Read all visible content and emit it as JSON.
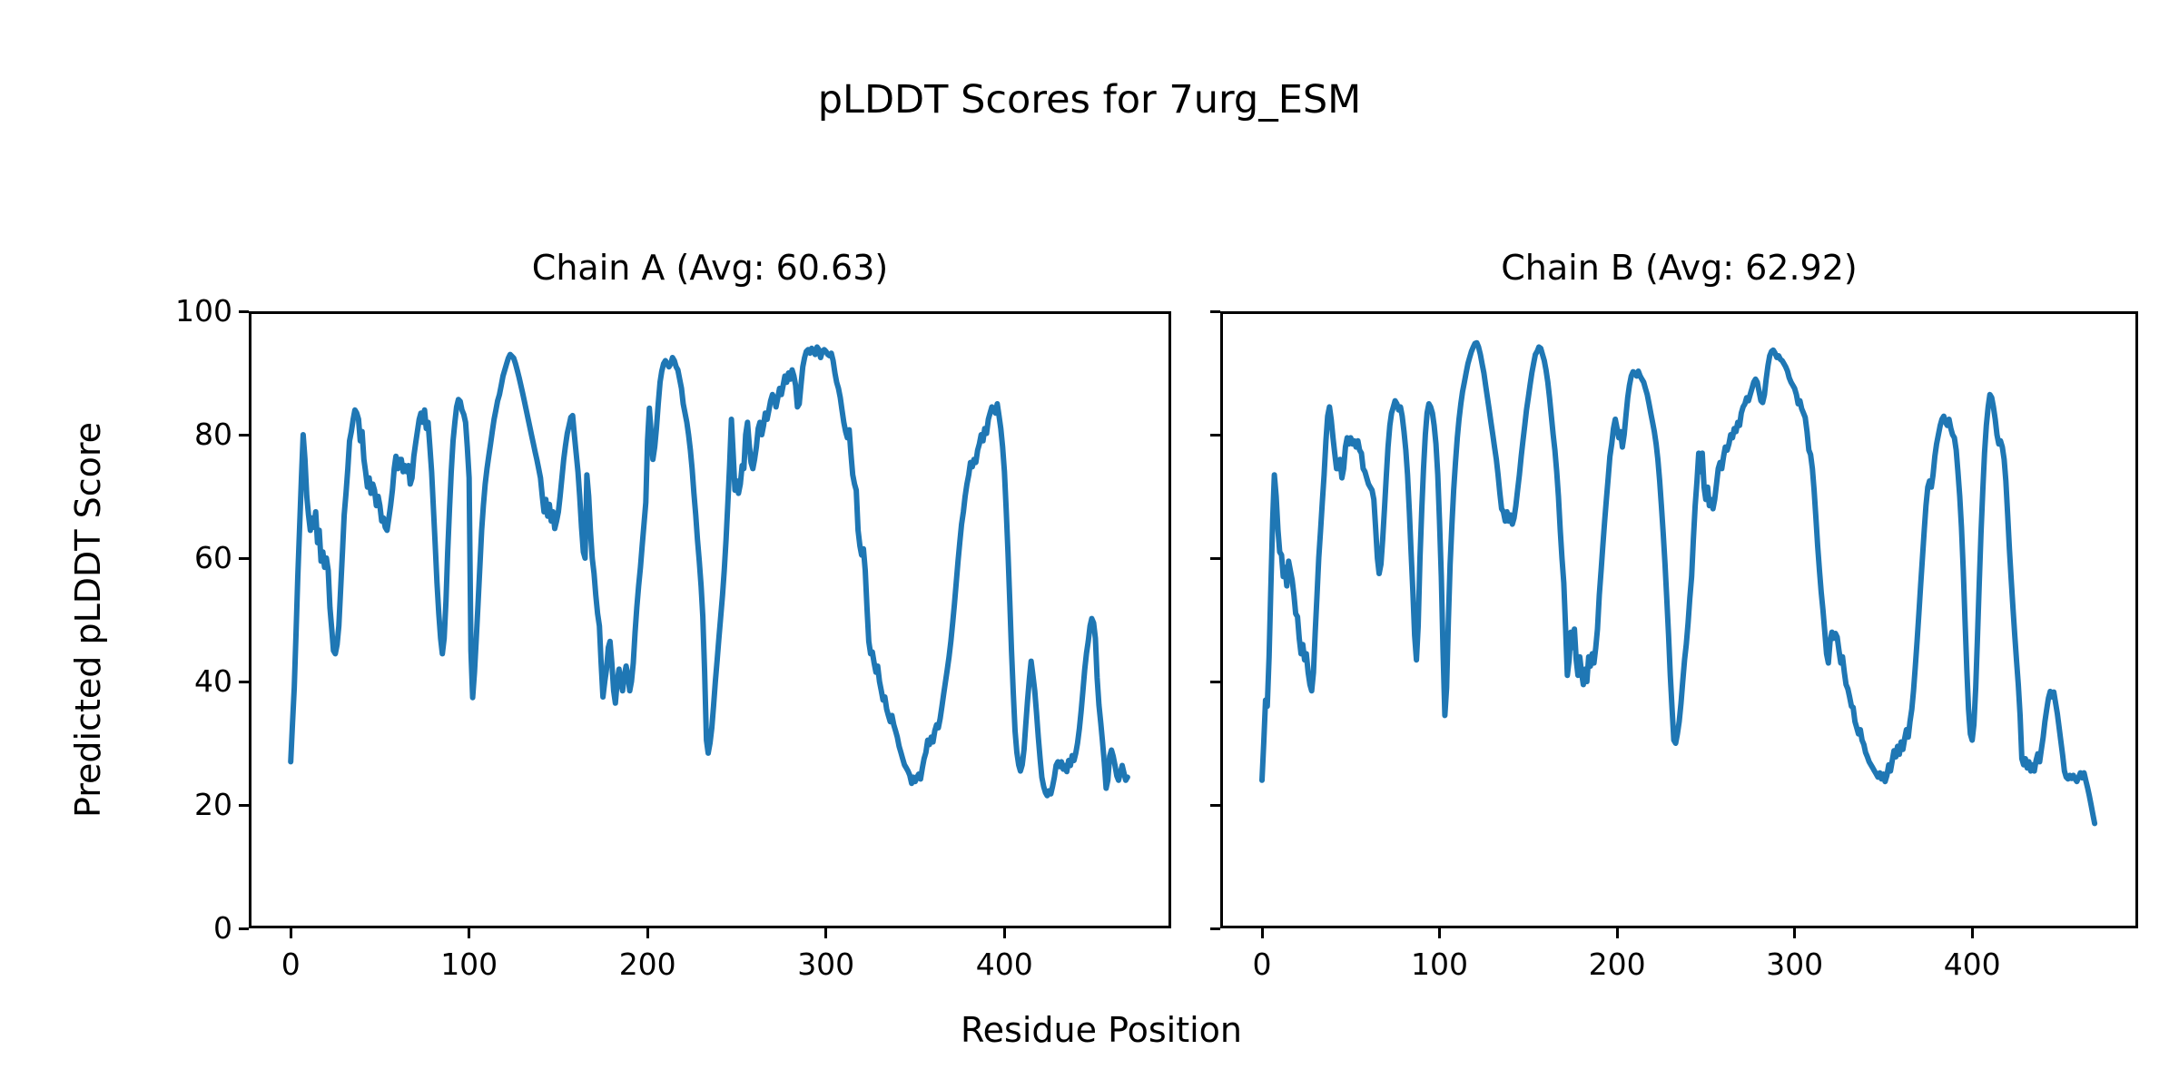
{
  "figure": {
    "title": "pLDDT Scores for 7urg_ESM",
    "xlabel": "Residue Position",
    "ylabel": "Predicted pLDDT Score",
    "background_color": "#ffffff",
    "line_color": "#1f77b4",
    "axes_color": "#000000"
  },
  "chart_data": [
    {
      "type": "line",
      "title": "Chain A (Avg: 60.63)",
      "chain": "A",
      "average_plddt": 60.63,
      "xlabel": "Residue Position",
      "ylabel": "Predicted pLDDT Score",
      "xticks": [
        0,
        100,
        200,
        300,
        400
      ],
      "yticks": [
        0,
        20,
        40,
        60,
        80,
        100
      ],
      "show_ytick_labels": true,
      "xlim": [
        -23.5,
        493.5
      ],
      "ylim": [
        0,
        100
      ],
      "grid": false,
      "legend": "none",
      "x_start": 0,
      "x_step": 1,
      "values": [
        27,
        33,
        39,
        48,
        57,
        65,
        73,
        80,
        76,
        70,
        67,
        64.5,
        66.5,
        65,
        67.5,
        62.5,
        64.5,
        59.5,
        61,
        58.5,
        60,
        58,
        52,
        48.5,
        45,
        44.5,
        46,
        49,
        55,
        61,
        67,
        70.5,
        74.5,
        79,
        80.5,
        82.5,
        84,
        83.5,
        82.5,
        79,
        80.5,
        76,
        74,
        71.5,
        73,
        70.5,
        72,
        71,
        68.5,
        70,
        68.5,
        66,
        66.5,
        65,
        64.5,
        66.5,
        68.5,
        71,
        74.5,
        76.5,
        74.5,
        76,
        76,
        74,
        75,
        74,
        75,
        72,
        73,
        76.5,
        78.5,
        80.5,
        82.5,
        83.5,
        82,
        84,
        81,
        82,
        78,
        74,
        68,
        62,
        56,
        51,
        47,
        44.5,
        47,
        53,
        61,
        68,
        74,
        79,
        82,
        84.5,
        85.7,
        85.4,
        84,
        83.3,
        82,
        78,
        73,
        45,
        37.4,
        41.5,
        47,
        52.5,
        58.5,
        64.5,
        68.5,
        72,
        74.5,
        76.5,
        78.5,
        80.5,
        82.5,
        84,
        85.5,
        86.5,
        88,
        89.5,
        90.5,
        91.5,
        92.4,
        93,
        92.7,
        92.4,
        91.5,
        90.4,
        89.3,
        88,
        86.7,
        85.4,
        84,
        82.6,
        81.3,
        79.9,
        78.6,
        77.2,
        75.9,
        74.5,
        73,
        70,
        67.5,
        69.5,
        66.8,
        68.7,
        66,
        67.5,
        64.8,
        66,
        67.5,
        70,
        73,
        76,
        78.2,
        80.2,
        81.5,
        82.8,
        83.1,
        80,
        77,
        74,
        70,
        65,
        61,
        60,
        73.5,
        70,
        64.5,
        60,
        57.5,
        54,
        51,
        49,
        43,
        37.5,
        40,
        42,
        45.5,
        46.5,
        43,
        38.5,
        36.5,
        40,
        42,
        40,
        38.5,
        41,
        42.5,
        41,
        38.5,
        40,
        43,
        48,
        52,
        55.5,
        58.5,
        62,
        65.5,
        69,
        79,
        84.3,
        80.5,
        76,
        78,
        81,
        85,
        88.5,
        90.3,
        91.5,
        92,
        91.5,
        91,
        91.5,
        92.5,
        92,
        91,
        90.5,
        89,
        87.5,
        85,
        83.5,
        82,
        80,
        77.5,
        74.5,
        70.5,
        67,
        63,
        59.5,
        55.5,
        50.5,
        41.5,
        30.5,
        28.4,
        30,
        32.5,
        36,
        40,
        43.5,
        47,
        50.5,
        54,
        58,
        63,
        69,
        75,
        82.5,
        77,
        71,
        72.5,
        70.5,
        72,
        75,
        74.5,
        80,
        82,
        78.5,
        75.5,
        74.5,
        76,
        78,
        81,
        82,
        80,
        81.5,
        83.5,
        82.5,
        84,
        85.5,
        86.5,
        86,
        84.5,
        86,
        87.5,
        86.5,
        88,
        89.5,
        88.5,
        90,
        89,
        90.5,
        89.5,
        88,
        84.5,
        85,
        88,
        91,
        92.5,
        93.5,
        93.8,
        93.2,
        94,
        93.5,
        93,
        94.2,
        93.8,
        92.5,
        93.5,
        93.8,
        93.5,
        93,
        92.8,
        93.2,
        92,
        90,
        88.5,
        87.5,
        86,
        84,
        82,
        80.5,
        79.5,
        80.8,
        77,
        73.5,
        72,
        71,
        64.5,
        62,
        60.5,
        61.5,
        58,
        52,
        46.5,
        44.5,
        44.8,
        43,
        41.5,
        42.5,
        40,
        38.5,
        37,
        37.5,
        35.5,
        34.5,
        33.5,
        34.5,
        33,
        32,
        31,
        29.5,
        28.5,
        27.5,
        26.5,
        26,
        25.5,
        24.8,
        23.5,
        24.5,
        23.8,
        24.5,
        25,
        24.2,
        26,
        27.5,
        28.5,
        30.5,
        29.8,
        31,
        30.2,
        32,
        33,
        32.5,
        34,
        36,
        38,
        40,
        42,
        44,
        46.5,
        49.5,
        52.5,
        56,
        59.5,
        62.5,
        65.5,
        67.5,
        70,
        72,
        73.5,
        75.5,
        74.8,
        76,
        75.5,
        77.5,
        78.5,
        80,
        79,
        81,
        80.2,
        82.5,
        83.5,
        84.5,
        84,
        83.5,
        85,
        83,
        81,
        78,
        74,
        68,
        61,
        53,
        45,
        38,
        32,
        28.5,
        26.5,
        25.5,
        26.5,
        29,
        33,
        37,
        40.5,
        43.3,
        41,
        38.5,
        35,
        31,
        27.5,
        24.5,
        23,
        22,
        21.5,
        22.3,
        21.8,
        23,
        24.5,
        26.4,
        27,
        26.2,
        27,
        25.8,
        26.4,
        25.4,
        27.2,
        26.4,
        28,
        27.2,
        28.4,
        30,
        32.3,
        35.2,
        38.4,
        41.9,
        44.6,
        46.5,
        49,
        50.2,
        49.5,
        47,
        40.6,
        36.2,
        33.3,
        30.3,
        26.9,
        22.7,
        24,
        27.9,
        28.9,
        27.9,
        26.4,
        24.7,
        24,
        25.2,
        26.4,
        25.2,
        24,
        24.5
      ]
    },
    {
      "type": "line",
      "title": "Chain B (Avg: 62.92)",
      "chain": "B",
      "average_plddt": 62.92,
      "xlabel": "Residue Position",
      "ylabel": "Predicted pLDDT Score",
      "xticks": [
        0,
        100,
        200,
        300,
        400
      ],
      "yticks": [
        0,
        20,
        40,
        60,
        80,
        100
      ],
      "show_ytick_labels": false,
      "xlim": [
        -23.5,
        493.5
      ],
      "ylim": [
        0,
        100
      ],
      "grid": false,
      "legend": "none",
      "x_start": 0,
      "x_step": 1,
      "values": [
        24,
        30,
        37,
        36,
        44,
        55,
        66,
        73.5,
        70,
        64.5,
        61,
        60.5,
        57,
        58.5,
        55.5,
        59.5,
        58,
        56.5,
        54,
        51,
        50.5,
        47,
        44.5,
        46,
        43.5,
        44.5,
        41.5,
        39.5,
        38.5,
        41.5,
        48,
        54,
        60,
        64.5,
        69,
        73.5,
        79,
        83,
        84.5,
        82.5,
        79.5,
        77,
        74.5,
        74.5,
        76,
        73,
        74.5,
        78,
        79.5,
        78.5,
        79.5,
        78.5,
        79,
        78,
        79,
        77.5,
        77,
        74.5,
        74,
        73,
        72,
        71.5,
        71,
        69.5,
        65,
        60,
        57.5,
        59,
        63,
        68,
        73,
        78,
        81.5,
        83.5,
        84.5,
        85.5,
        85,
        84,
        84.5,
        83,
        80.5,
        77.5,
        73.5,
        67.5,
        61,
        54.5,
        47.5,
        43.5,
        49,
        60,
        68,
        74.5,
        80,
        83.5,
        85,
        84.5,
        83.5,
        81.5,
        78.5,
        73.5,
        66,
        57,
        45,
        34.5,
        39,
        50,
        59,
        65.5,
        71,
        75.5,
        79.5,
        82.5,
        85,
        87,
        88.5,
        90,
        91.5,
        92.5,
        93.5,
        94.2,
        94.8,
        94.9,
        94.2,
        93,
        91.5,
        90,
        88,
        86,
        84,
        82,
        80,
        78,
        76,
        73.5,
        70.5,
        68,
        67.5,
        66,
        67.5,
        66,
        67,
        65.5,
        66.5,
        68.5,
        71,
        73.5,
        76.5,
        79,
        81.5,
        84,
        86,
        88,
        90,
        91.5,
        93,
        93.5,
        94.2,
        94,
        93,
        92,
        90.5,
        88.5,
        86,
        83,
        80,
        77.5,
        74,
        70,
        64.5,
        60,
        56,
        49,
        41,
        43.5,
        48,
        45.5,
        48.5,
        43.5,
        41,
        44,
        41.5,
        39.5,
        42,
        40,
        44,
        42.5,
        44.5,
        43,
        45.5,
        48.5,
        54,
        58,
        62,
        66,
        69.5,
        73,
        76.5,
        78.5,
        81,
        82.5,
        81,
        79.5,
        80.5,
        78,
        80,
        83,
        86,
        88,
        89.5,
        90.2,
        90,
        89.5,
        90.3,
        89.5,
        89,
        88.5,
        87.5,
        86.5,
        85,
        83.5,
        82,
        80.5,
        78.5,
        76,
        72.5,
        68.5,
        64,
        59,
        53.5,
        47.5,
        41,
        35.5,
        30.5,
        30,
        31.5,
        33.5,
        36.5,
        40,
        43.5,
        46,
        49.5,
        53.5,
        57,
        63,
        68.5,
        72.5,
        77,
        74,
        77,
        71.5,
        69.5,
        71.5,
        68.5,
        69.5,
        68,
        69.5,
        72,
        74.5,
        75.5,
        74.5,
        76.5,
        78,
        77.5,
        78.5,
        80,
        79.5,
        81,
        80.5,
        82,
        81.5,
        83.5,
        84.5,
        85,
        86,
        85.5,
        86.5,
        87.5,
        88.5,
        89,
        88.5,
        87,
        85.5,
        85.2,
        86.5,
        89,
        91.2,
        92.8,
        93.5,
        93.7,
        93.2,
        92.5,
        92.8,
        92.2,
        92,
        91.5,
        91,
        90.3,
        89.2,
        88.5,
        88,
        87.5,
        86.5,
        85,
        85.5,
        84.2,
        83.5,
        82.8,
        80.5,
        77.5,
        76.8,
        74.5,
        71,
        66.5,
        62,
        58,
        54.5,
        51.5,
        48,
        44.5,
        43,
        46.5,
        48,
        47,
        47.8,
        47.2,
        45,
        43,
        44,
        41.5,
        39.5,
        38.8,
        37.5,
        36,
        35.8,
        33.5,
        32.5,
        31.5,
        32.2,
        30.5,
        29.8,
        28.5,
        27.8,
        27,
        26.5,
        26,
        25.5,
        25,
        24.5,
        25.2,
        24.2,
        25,
        23.8,
        24.8,
        26.5,
        25.5,
        27.2,
        28.8,
        27.8,
        29.5,
        28.2,
        30.2,
        29,
        30.8,
        32.2,
        31,
        33.5,
        35.5,
        38.5,
        42.5,
        46.5,
        51,
        55.5,
        60,
        64.5,
        68.5,
        71.5,
        72.5,
        71.5,
        73.5,
        76.5,
        78.5,
        80,
        81.5,
        82.5,
        83,
        82,
        81.5,
        82.5,
        81,
        80,
        79.5,
        77.5,
        74,
        70,
        65,
        58,
        50,
        42,
        35.5,
        31.5,
        30.5,
        33,
        39,
        47,
        56,
        64,
        71,
        77,
        81.5,
        84.5,
        86.5,
        86,
        84.5,
        82.5,
        80,
        78.5,
        79,
        78,
        76,
        72.5,
        67,
        61.5,
        56.5,
        52,
        47.5,
        43.5,
        39.5,
        34.5,
        27.5,
        26.5,
        27.5,
        26,
        27,
        25.5,
        26.5,
        25.5,
        27.2,
        28.3,
        27,
        29,
        31,
        33.5,
        35.5,
        37.3,
        38.4,
        37.5,
        38.3,
        36.5,
        34.8,
        32.5,
        30.3,
        28,
        25.5,
        24.5,
        24.2,
        24.8,
        24.3,
        24.8,
        24.2,
        23.8,
        24.5,
        25.2,
        24.4,
        25.2,
        24,
        22.8,
        21.5,
        20,
        18.5,
        17
      ]
    }
  ]
}
